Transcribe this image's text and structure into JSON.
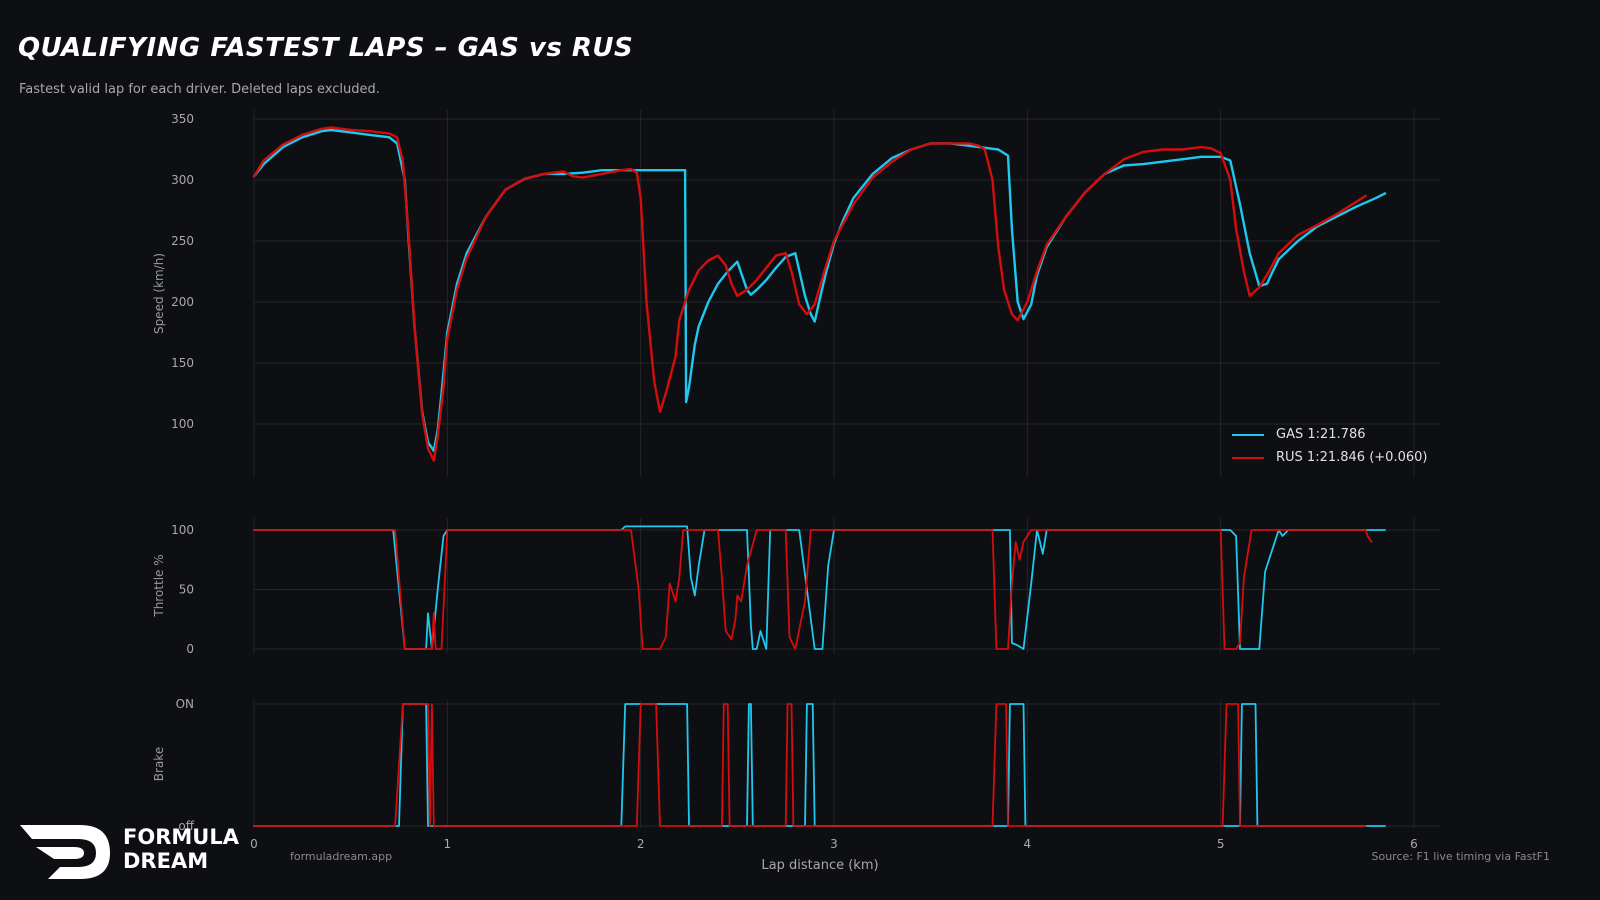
{
  "header": {
    "title": "QUALIFYING FASTEST LAPS  –  GAS vs RUS",
    "subtitle": "Fastest valid lap for each driver. Deleted laps excluded."
  },
  "footer": {
    "site": "formuladream.app",
    "source": "Source: F1 live timing via FastF1",
    "logo_line1": "FORMULA",
    "logo_line2": "DREAM"
  },
  "legend": {
    "gas": "GAS  1:21.786",
    "rus": "RUS  1:21.846  (+0.060)"
  },
  "colors": {
    "background": "#0e0f12",
    "grid": "#24262b",
    "gas": "#1ec8ef",
    "rus": "#d40d0d"
  },
  "chart_data": [
    {
      "type": "line",
      "panel": "speed",
      "ylabel": "Speed (km/h)",
      "xlabel": "",
      "xlim": [
        0,
        6
      ],
      "ylim": [
        60,
        360
      ],
      "yticks": [
        100,
        150,
        200,
        250,
        300,
        350
      ],
      "ytick_labels": [
        "100",
        "150",
        "200",
        "250",
        "300",
        "350"
      ],
      "grid": true,
      "legend_position": "bottom-right",
      "series": [
        {
          "name": "GAS  1:21.786",
          "color": "#1ec8ef",
          "x": [
            0,
            0.05,
            0.15,
            0.25,
            0.35,
            0.4,
            0.5,
            0.6,
            0.7,
            0.74,
            0.78,
            0.8,
            0.83,
            0.87,
            0.9,
            0.93,
            0.95,
            0.97,
            1.0,
            1.05,
            1.1,
            1.2,
            1.3,
            1.4,
            1.5,
            1.6,
            1.7,
            1.8,
            1.9,
            2.0,
            2.1,
            2.2,
            2.23,
            2.235,
            2.25,
            2.28,
            2.3,
            2.35,
            2.4,
            2.45,
            2.5,
            2.55,
            2.57,
            2.6,
            2.65,
            2.7,
            2.75,
            2.8,
            2.85,
            2.88,
            2.9,
            2.93,
            2.96,
            3.0,
            3.05,
            3.1,
            3.2,
            3.3,
            3.4,
            3.5,
            3.6,
            3.7,
            3.8,
            3.85,
            3.9,
            3.92,
            3.95,
            3.98,
            4.02,
            4.05,
            4.1,
            4.2,
            4.3,
            4.4,
            4.5,
            4.6,
            4.7,
            4.8,
            4.9,
            5.0,
            5.05,
            5.1,
            5.15,
            5.2,
            5.24,
            5.26,
            5.3,
            5.4,
            5.5,
            5.6,
            5.7,
            5.8,
            5.85
          ],
          "values": [
            303,
            313,
            327,
            335,
            340,
            341,
            339,
            337,
            335,
            330,
            300,
            250,
            180,
            110,
            85,
            78,
            95,
            125,
            175,
            215,
            240,
            270,
            292,
            301,
            305,
            305,
            306,
            308,
            308,
            308,
            308,
            308,
            308,
            118,
            130,
            165,
            180,
            200,
            215,
            225,
            233,
            210,
            206,
            210,
            218,
            228,
            237,
            240,
            205,
            190,
            184,
            205,
            225,
            248,
            268,
            285,
            305,
            318,
            325,
            330,
            330,
            328,
            326,
            325,
            320,
            260,
            200,
            186,
            198,
            222,
            245,
            270,
            290,
            305,
            312,
            313,
            315,
            317,
            319,
            319,
            316,
            280,
            240,
            213,
            215,
            222,
            235,
            250,
            262,
            270,
            278,
            285,
            289
          ]
        },
        {
          "name": "RUS  1:21.846  (+0.060)",
          "color": "#d40d0d",
          "x": [
            0,
            0.05,
            0.15,
            0.25,
            0.35,
            0.4,
            0.5,
            0.6,
            0.7,
            0.74,
            0.77,
            0.8,
            0.83,
            0.87,
            0.9,
            0.93,
            0.95,
            0.98,
            1.0,
            1.05,
            1.1,
            1.2,
            1.3,
            1.4,
            1.5,
            1.6,
            1.65,
            1.7,
            1.8,
            1.9,
            1.95,
            1.98,
            2.0,
            2.03,
            2.07,
            2.1,
            2.13,
            2.18,
            2.2,
            2.25,
            2.3,
            2.35,
            2.4,
            2.44,
            2.47,
            2.5,
            2.55,
            2.6,
            2.65,
            2.7,
            2.75,
            2.78,
            2.82,
            2.86,
            2.9,
            2.95,
            3.0,
            3.05,
            3.1,
            3.2,
            3.3,
            3.4,
            3.5,
            3.6,
            3.7,
            3.75,
            3.78,
            3.82,
            3.85,
            3.88,
            3.92,
            3.95,
            4.0,
            4.05,
            4.1,
            4.2,
            4.3,
            4.4,
            4.5,
            4.6,
            4.7,
            4.8,
            4.9,
            4.95,
            5.0,
            5.05,
            5.08,
            5.12,
            5.15,
            5.2,
            5.25,
            5.3,
            5.4,
            5.5,
            5.6,
            5.7,
            5.75
          ],
          "values": [
            303,
            316,
            329,
            337,
            342,
            343,
            341,
            340,
            338,
            335,
            315,
            255,
            180,
            108,
            80,
            70,
            90,
            130,
            170,
            210,
            236,
            270,
            292,
            301,
            305,
            307,
            303,
            302,
            305,
            308,
            309,
            306,
            285,
            200,
            135,
            110,
            125,
            155,
            185,
            210,
            226,
            234,
            238,
            230,
            215,
            205,
            210,
            218,
            228,
            238,
            240,
            225,
            198,
            190,
            198,
            225,
            250,
            265,
            280,
            302,
            315,
            325,
            330,
            330,
            330,
            328,
            325,
            300,
            245,
            210,
            190,
            185,
            200,
            225,
            247,
            270,
            290,
            305,
            317,
            323,
            325,
            325,
            327,
            326,
            322,
            300,
            260,
            225,
            205,
            212,
            225,
            240,
            255,
            263,
            272,
            282,
            287
          ]
        }
      ]
    },
    {
      "type": "line",
      "panel": "throttle",
      "ylabel": "Throttle %",
      "xlabel": "",
      "xlim": [
        0,
        6
      ],
      "ylim": [
        -10,
        110
      ],
      "yticks": [
        0,
        50,
        100
      ],
      "ytick_labels": [
        "0",
        "50",
        "100"
      ],
      "grid": true,
      "series": [
        {
          "name": "GAS",
          "color": "#1ec8ef",
          "x": [
            0,
            0.72,
            0.78,
            0.89,
            0.9,
            0.92,
            0.95,
            0.98,
            1.0,
            1.9,
            1.92,
            2.24,
            2.26,
            2.28,
            2.3,
            2.33,
            2.35,
            2.5,
            2.55,
            2.57,
            2.58,
            2.6,
            2.62,
            2.65,
            2.67,
            2.7,
            2.8,
            2.82,
            2.9,
            2.94,
            2.97,
            3.0,
            3.9,
            3.91,
            3.92,
            3.95,
            3.98,
            4.02,
            4.05,
            4.08,
            4.1,
            4.12,
            5.0,
            5.05,
            5.08,
            5.1,
            5.15,
            5.2,
            5.23,
            5.26,
            5.3,
            5.32,
            5.35,
            5.4,
            5.85
          ],
          "values": [
            100,
            100,
            0,
            0,
            30,
            0,
            50,
            95,
            100,
            100,
            103,
            103,
            60,
            45,
            70,
            100,
            100,
            100,
            100,
            20,
            0,
            0,
            15,
            0,
            100,
            100,
            100,
            100,
            0,
            0,
            70,
            100,
            100,
            100,
            5,
            3,
            0,
            55,
            100,
            80,
            100,
            100,
            100,
            100,
            95,
            0,
            0,
            0,
            65,
            80,
            100,
            95,
            100,
            100,
            100
          ]
        },
        {
          "name": "RUS",
          "color": "#d40d0d",
          "x": [
            0,
            0.73,
            0.78,
            0.87,
            0.92,
            0.93,
            0.94,
            0.97,
            1.0,
            1.95,
            1.99,
            2.01,
            2.1,
            2.13,
            2.15,
            2.18,
            2.2,
            2.22,
            2.25,
            2.3,
            2.35,
            2.4,
            2.42,
            2.44,
            2.47,
            2.49,
            2.5,
            2.52,
            2.55,
            2.6,
            2.75,
            2.77,
            2.8,
            2.85,
            2.88,
            3.82,
            3.84,
            3.87,
            3.9,
            3.92,
            3.94,
            3.96,
            3.98,
            4.02,
            5.0,
            5.02,
            5.08,
            5.1,
            5.12,
            5.14,
            5.16,
            5.18,
            5.2,
            5.75,
            5.76,
            5.78
          ],
          "values": [
            100,
            100,
            0,
            0,
            0,
            30,
            0,
            0,
            100,
            100,
            50,
            0,
            0,
            10,
            55,
            40,
            60,
            100,
            100,
            100,
            100,
            100,
            60,
            15,
            8,
            25,
            45,
            40,
            70,
            100,
            100,
            10,
            0,
            40,
            100,
            100,
            0,
            0,
            0,
            55,
            90,
            75,
            90,
            100,
            100,
            0,
            0,
            5,
            60,
            80,
            100,
            100,
            100,
            100,
            95,
            90
          ]
        }
      ]
    },
    {
      "type": "line",
      "panel": "brake",
      "ylabel": "Brake",
      "xlabel": "Lap distance (km)",
      "xlim": [
        0,
        6
      ],
      "ylim": [
        0,
        1
      ],
      "yticks": [
        0,
        1
      ],
      "ytick_labels": [
        "off",
        "ON"
      ],
      "xticks": [
        0,
        1,
        2,
        3,
        4,
        5,
        6
      ],
      "xtick_labels": [
        "0",
        "1",
        "2",
        "3",
        "4",
        "5",
        "6"
      ],
      "grid": true,
      "series": [
        {
          "name": "GAS",
          "color": "#1ec8ef",
          "x": [
            0,
            0.75,
            0.77,
            0.89,
            0.9,
            1.9,
            1.92,
            2.24,
            2.25,
            2.55,
            2.56,
            2.57,
            2.58,
            2.85,
            2.86,
            2.89,
            2.9,
            3.9,
            3.91,
            3.98,
            3.99,
            5.1,
            5.11,
            5.18,
            5.19,
            5.85
          ],
          "values": [
            0,
            0,
            1,
            1,
            0,
            0,
            1,
            1,
            0,
            0,
            1,
            1,
            0,
            0,
            1,
            1,
            0,
            0,
            1,
            1,
            0,
            0,
            1,
            1,
            0,
            0
          ]
        },
        {
          "name": "RUS",
          "color": "#d40d0d",
          "x": [
            0,
            0.73,
            0.77,
            0.9,
            0.91,
            0.92,
            0.93,
            1.98,
            2.0,
            2.08,
            2.1,
            2.42,
            2.43,
            2.45,
            2.46,
            2.75,
            2.76,
            2.78,
            2.79,
            3.82,
            3.84,
            3.89,
            3.9,
            5.01,
            5.03,
            5.09,
            5.1,
            5.75
          ],
          "values": [
            0,
            0,
            1,
            1,
            0,
            1,
            0,
            0,
            1,
            1,
            0,
            0,
            1,
            1,
            0,
            0,
            1,
            1,
            0,
            0,
            1,
            1,
            0,
            0,
            1,
            1,
            0,
            0
          ]
        }
      ]
    }
  ]
}
